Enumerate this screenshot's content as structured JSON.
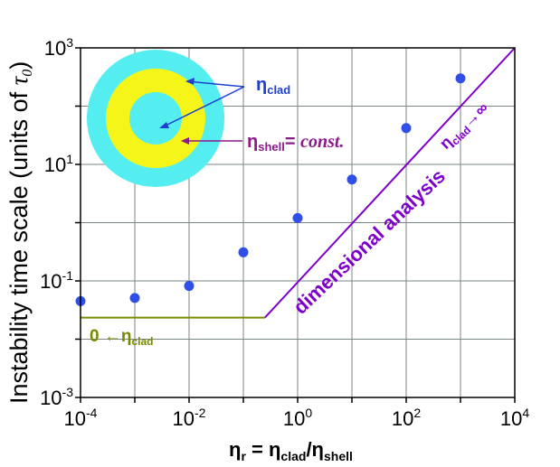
{
  "chart_data": {
    "type": "scatter",
    "xscale": "log",
    "yscale": "log",
    "xlim": [
      0.0001,
      10000
    ],
    "ylim": [
      0.001,
      1000
    ],
    "grid": true,
    "x_ticks": [
      {
        "base": "10",
        "exp": "-4"
      },
      {
        "base": "10",
        "exp": "-2"
      },
      {
        "base": "10",
        "exp": "0"
      },
      {
        "base": "10",
        "exp": "2"
      },
      {
        "base": "10",
        "exp": "4"
      }
    ],
    "y_ticks": [
      {
        "base": "10",
        "exp": "-3"
      },
      {
        "base": "10",
        "exp": "-1"
      },
      {
        "base": "10",
        "exp": "1"
      },
      {
        "base": "10",
        "exp": "3"
      }
    ],
    "xlabel": {
      "eta": "η",
      "r": "r",
      "eq": " = η",
      "clad": "clad",
      "slash": "/η",
      "shell": "shell"
    },
    "ylabel": {
      "text": "Instability  time scale (units of ",
      "tau": "τ",
      "sub": "0",
      "close": ")"
    },
    "points": {
      "x": [
        0.0001,
        0.001,
        0.01,
        0.1,
        1,
        10,
        100,
        1000
      ],
      "y": [
        0.045,
        0.051,
        0.082,
        0.31,
        1.2,
        5.5,
        42,
        300
      ],
      "color": "#2f4fe8"
    },
    "lines": {
      "low_limit": {
        "y": 0.0235,
        "x_from": 0.0001,
        "x_to": 0.25,
        "color": "#7a8a00"
      },
      "high_limit": {
        "from": [
          0.25,
          0.0235
        ],
        "to": [
          10000,
          1000
        ],
        "color": "#7f00cc"
      }
    },
    "annotations": {
      "dimensional_analysis": "dimensional analysis",
      "eta_inf": {
        "eta": "η",
        "sub": "clad",
        "arrow": "→∞"
      },
      "eta_zero": {
        "zero": "0 ←η",
        "sub": "clad"
      },
      "eta_clad": {
        "eta": "η",
        "sub": "clad"
      },
      "eta_shell": {
        "eta": "η",
        "sub": "shell",
        "eq": "= ",
        "const": "const."
      }
    },
    "colors": {
      "cladding": "#55eef0",
      "shell": "#f5f51a",
      "points": "#2f4fe8",
      "low_limit": "#7a8a00",
      "high_limit": "#7f00cc",
      "eta_clad_label": "#1f3fd0",
      "eta_shell_label": "#8b1a8b"
    }
  }
}
